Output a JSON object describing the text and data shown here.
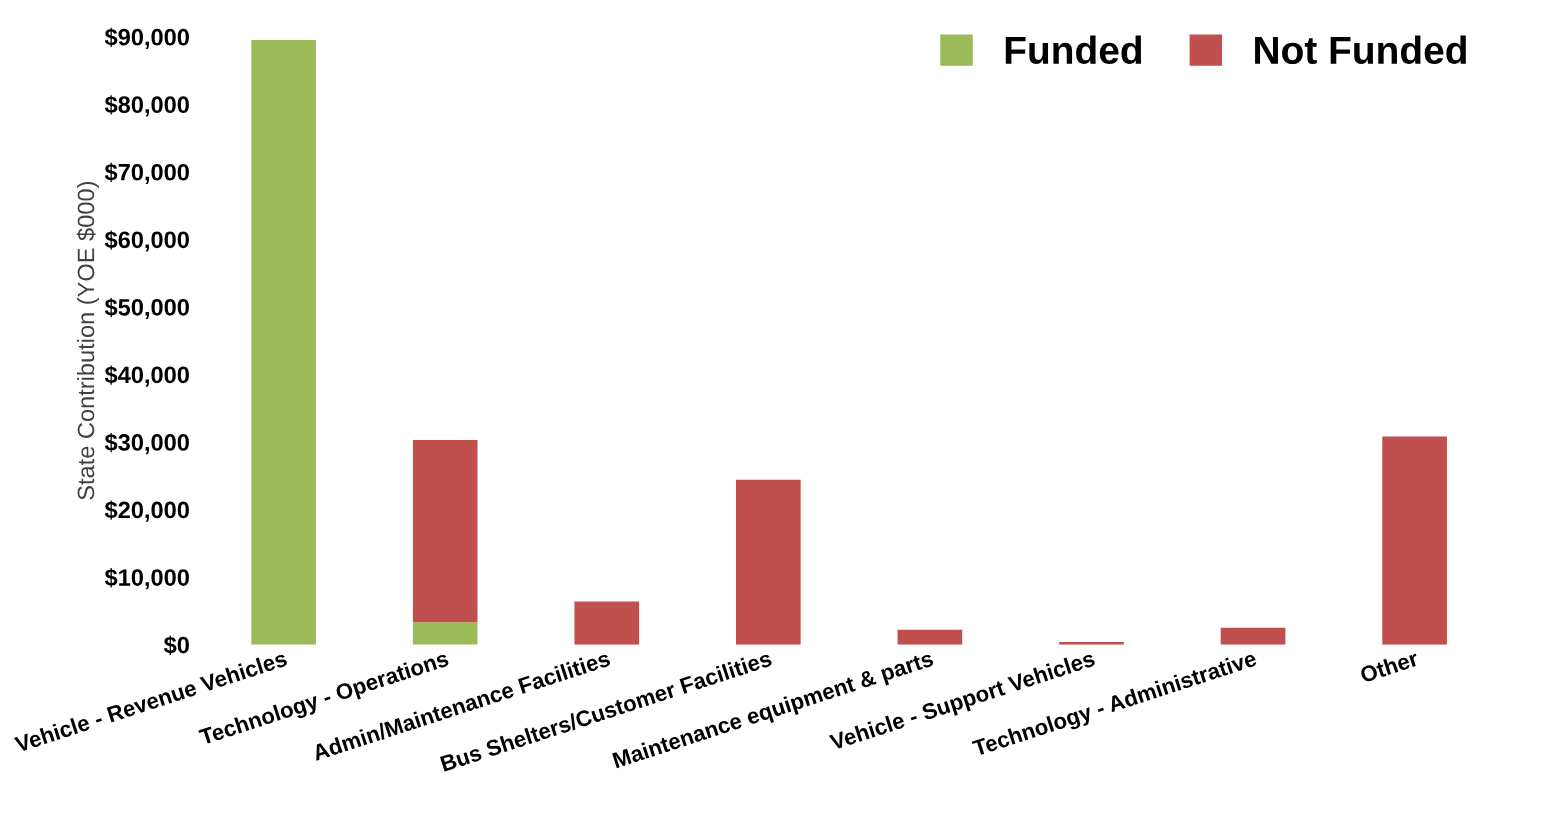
{
  "chart_data": {
    "type": "bar",
    "stacked": true,
    "ylabel": "State Contribution (YOE $000)",
    "categories": [
      "Vehicle - Revenue Vehicles",
      "Technology - Operations",
      "Admin/Maintenance Facilities",
      "Bus Shelters/Customer Facilities",
      "Maintenance equipment & parts",
      "Vehicle - Support Vehicles",
      "Technology - Administrative",
      "Other"
    ],
    "series": [
      {
        "name": "Funded",
        "color": "#9bbb59",
        "values": [
          89500,
          3300,
          0,
          0,
          0,
          0,
          0,
          0
        ]
      },
      {
        "name": "Not Funded",
        "color": "#c0504d",
        "values": [
          0,
          27000,
          6400,
          24400,
          2200,
          400,
          2500,
          30800
        ]
      }
    ],
    "ylim": [
      0,
      90000
    ],
    "yticks": [
      {
        "value": 0,
        "label": "$0"
      },
      {
        "value": 10000,
        "label": "$10,000"
      },
      {
        "value": 20000,
        "label": "$20,000"
      },
      {
        "value": 30000,
        "label": "$30,000"
      },
      {
        "value": 40000,
        "label": "$40,000"
      },
      {
        "value": 50000,
        "label": "$50,000"
      },
      {
        "value": 60000,
        "label": "$60,000"
      },
      {
        "value": 70000,
        "label": "$70,000"
      },
      {
        "value": 80000,
        "label": "$80,000"
      },
      {
        "value": 90000,
        "label": "$90,000"
      }
    ],
    "grid": false,
    "legend": "top right"
  }
}
